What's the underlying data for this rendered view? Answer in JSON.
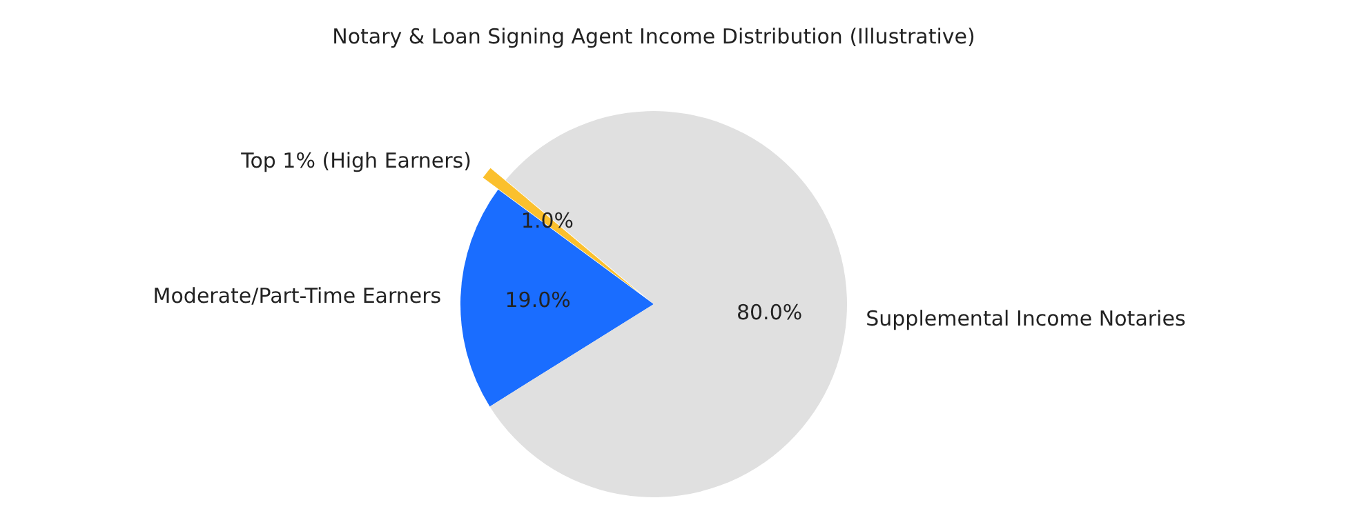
{
  "chart_data": {
    "type": "pie",
    "title": "Notary & Loan Signing Agent Income Distribution (Illustrative)",
    "categories": [
      "Top 1% (High Earners)",
      "Moderate/Part-Time Earners",
      "Supplemental Income Notaries"
    ],
    "values": [
      1,
      19,
      80
    ],
    "colors": [
      "#fbc02d",
      "#1a6dff",
      "#e0e0e0"
    ],
    "value_labels": [
      "1.0%",
      "19.0%",
      "80.0%"
    ]
  }
}
